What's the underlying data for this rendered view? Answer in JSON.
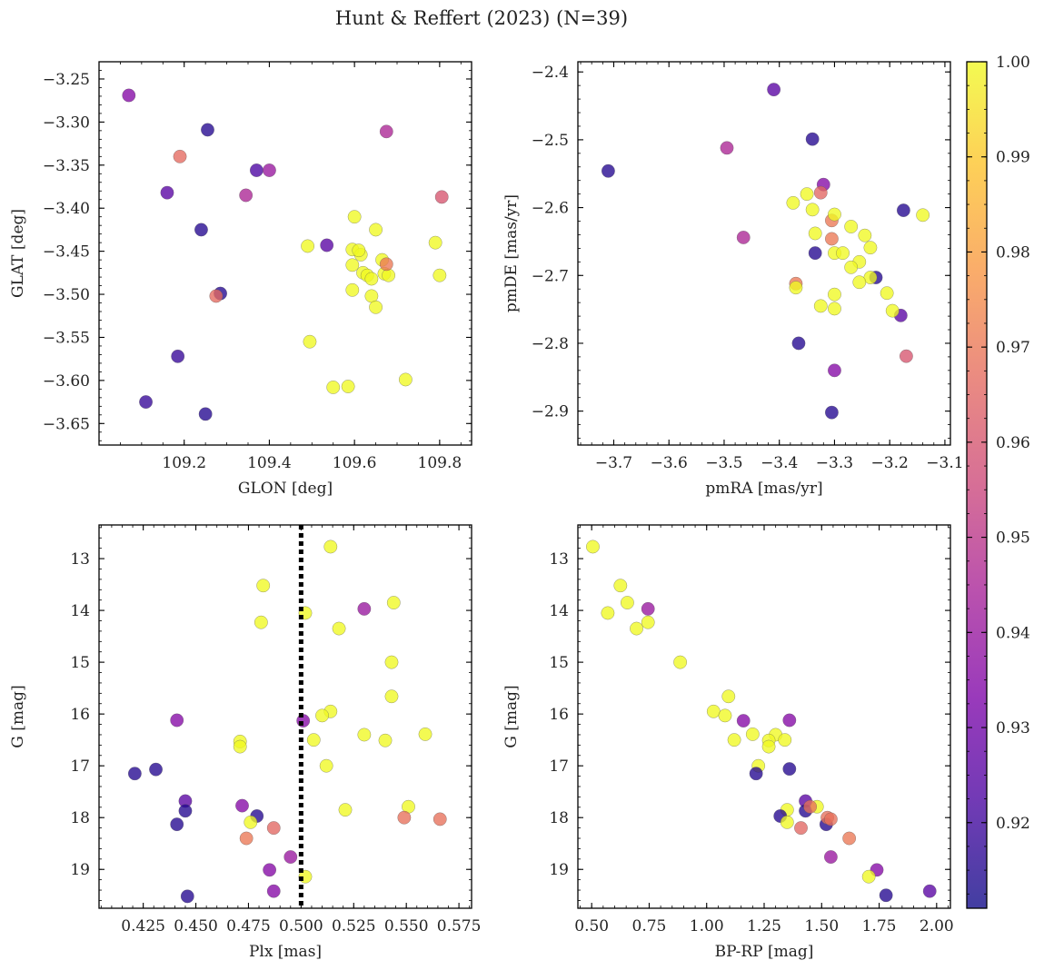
{
  "chart_data": {
    "title": "Hunt & Reffert (2023) (N=39)",
    "colorbar": {
      "range": [
        0.911,
        1.0
      ],
      "ticks": [
        0.92,
        0.93,
        0.94,
        0.95,
        0.96,
        0.97,
        0.98,
        0.99,
        1.0
      ],
      "tick_labels": [
        "0.92",
        "0.93",
        "0.94",
        "0.95",
        "0.96",
        "0.97",
        "0.98",
        "0.99",
        "1.00"
      ],
      "colormap": "plasma"
    },
    "panels": [
      {
        "type": "scatter",
        "xlabel": "GLON [deg]",
        "ylabel": "GLAT [deg]",
        "xlim": [
          109.0,
          109.875
        ],
        "ylim": [
          -3.675,
          -3.23
        ],
        "xticks": [
          109.2,
          109.4,
          109.6,
          109.8
        ],
        "xtick_labels": [
          "109.2",
          "109.4",
          "109.6",
          "109.8"
        ],
        "yticks": [
          -3.65,
          -3.6,
          -3.55,
          -3.5,
          -3.45,
          -3.4,
          -3.35,
          -3.3,
          -3.25
        ],
        "ytick_labels": [
          "−3.65",
          "−3.60",
          "−3.55",
          "−3.50",
          "−3.45",
          "−3.40",
          "−3.35",
          "−3.30",
          "−3.25"
        ],
        "x_minor_step": 0.05,
        "y_minor_step": 0.01,
        "points": [
          [
            109.07,
            -3.269,
            0.935
          ],
          [
            109.255,
            -3.309,
            0.915
          ],
          [
            109.19,
            -3.34,
            0.966
          ],
          [
            109.16,
            -3.382,
            0.925
          ],
          [
            109.37,
            -3.356,
            0.922
          ],
          [
            109.4,
            -3.356,
            0.94
          ],
          [
            109.345,
            -3.385,
            0.945
          ],
          [
            109.24,
            -3.425,
            0.915
          ],
          [
            109.285,
            -3.499,
            0.915
          ],
          [
            109.275,
            -3.502,
            0.966
          ],
          [
            109.185,
            -3.572,
            0.918
          ],
          [
            109.11,
            -3.625,
            0.918
          ],
          [
            109.25,
            -3.639,
            0.915
          ],
          [
            109.535,
            -3.443,
            0.925
          ],
          [
            109.675,
            -3.311,
            0.945
          ],
          [
            109.805,
            -3.387,
            0.96
          ],
          [
            109.49,
            -3.444,
            1.0
          ],
          [
            109.6,
            -3.41,
            1.0
          ],
          [
            109.595,
            -3.448,
            1.0
          ],
          [
            109.615,
            -3.454,
            1.0
          ],
          [
            109.65,
            -3.425,
            1.0
          ],
          [
            109.595,
            -3.466,
            1.0
          ],
          [
            109.62,
            -3.475,
            1.0
          ],
          [
            109.63,
            -3.478,
            1.0
          ],
          [
            109.64,
            -3.482,
            1.0
          ],
          [
            109.665,
            -3.46,
            1.0
          ],
          [
            109.67,
            -3.476,
            1.0
          ],
          [
            109.68,
            -3.478,
            1.0
          ],
          [
            109.675,
            -3.465,
            0.97
          ],
          [
            109.595,
            -3.495,
            1.0
          ],
          [
            109.64,
            -3.502,
            1.0
          ],
          [
            109.65,
            -3.515,
            1.0
          ],
          [
            109.79,
            -3.44,
            1.0
          ],
          [
            109.8,
            -3.478,
            1.0
          ],
          [
            109.495,
            -3.555,
            1.0
          ],
          [
            109.72,
            -3.599,
            1.0
          ],
          [
            109.55,
            -3.608,
            1.0
          ],
          [
            109.585,
            -3.607,
            1.0
          ],
          [
            109.61,
            -3.449,
            1.0
          ]
        ]
      },
      {
        "type": "scatter",
        "xlabel": "pmRA [mas/yr]",
        "ylabel": "pmDE [mas/yr]",
        "xlim": [
          -3.765,
          -3.09
        ],
        "ylim": [
          -2.95,
          -2.385
        ],
        "xticks": [
          -3.7,
          -3.6,
          -3.5,
          -3.4,
          -3.3,
          -3.2,
          -3.1
        ],
        "xtick_labels": [
          "−3.7",
          "−3.6",
          "−3.5",
          "−3.4",
          "−3.3",
          "−3.2",
          "−3.1"
        ],
        "yticks": [
          -2.9,
          -2.8,
          -2.7,
          -2.6,
          -2.5,
          -2.4
        ],
        "ytick_labels": [
          "−2.9",
          "−2.8",
          "−2.7",
          "−2.6",
          "−2.5",
          "−2.4"
        ],
        "x_minor_step": 0.02,
        "y_minor_step": 0.02,
        "points": [
          [
            -3.71,
            -2.546,
            0.915
          ],
          [
            -3.41,
            -2.426,
            0.925
          ],
          [
            -3.495,
            -2.512,
            0.945
          ],
          [
            -3.34,
            -2.499,
            0.915
          ],
          [
            -3.32,
            -2.566,
            0.935
          ],
          [
            -3.465,
            -2.644,
            0.945
          ],
          [
            -3.335,
            -2.667,
            0.915
          ],
          [
            -3.175,
            -2.604,
            0.915
          ],
          [
            -3.225,
            -2.703,
            0.915
          ],
          [
            -3.18,
            -2.759,
            0.925
          ],
          [
            -3.365,
            -2.8,
            0.915
          ],
          [
            -3.17,
            -2.819,
            0.96
          ],
          [
            -3.3,
            -2.84,
            0.935
          ],
          [
            -3.305,
            -2.902,
            0.915
          ],
          [
            -3.325,
            -2.578,
            0.965
          ],
          [
            -3.305,
            -2.619,
            0.97
          ],
          [
            -3.305,
            -2.646,
            0.97
          ],
          [
            -3.37,
            -2.712,
            0.97
          ],
          [
            -3.375,
            -2.593,
            1.0
          ],
          [
            -3.35,
            -2.58,
            1.0
          ],
          [
            -3.34,
            -2.603,
            1.0
          ],
          [
            -3.3,
            -2.61,
            1.0
          ],
          [
            -3.27,
            -2.628,
            1.0
          ],
          [
            -3.335,
            -2.638,
            1.0
          ],
          [
            -3.245,
            -2.641,
            1.0
          ],
          [
            -3.235,
            -2.659,
            1.0
          ],
          [
            -3.3,
            -2.667,
            1.0
          ],
          [
            -3.285,
            -2.667,
            1.0
          ],
          [
            -3.255,
            -2.68,
            1.0
          ],
          [
            -3.27,
            -2.688,
            1.0
          ],
          [
            -3.235,
            -2.703,
            1.0
          ],
          [
            -3.255,
            -2.71,
            1.0
          ],
          [
            -3.37,
            -2.718,
            1.0
          ],
          [
            -3.3,
            -2.728,
            1.0
          ],
          [
            -3.205,
            -2.726,
            1.0
          ],
          [
            -3.325,
            -2.745,
            1.0
          ],
          [
            -3.3,
            -2.749,
            1.0
          ],
          [
            -3.195,
            -2.752,
            1.0
          ],
          [
            -3.14,
            -2.611,
            1.0
          ]
        ]
      },
      {
        "type": "scatter",
        "xlabel": "Plx [mas]",
        "ylabel": "G [mag]",
        "xlim": [
          0.404,
          0.581
        ],
        "ylim": [
          19.75,
          12.35
        ],
        "y_inverted": true,
        "xticks": [
          0.425,
          0.45,
          0.475,
          0.5,
          0.525,
          0.55,
          0.575
        ],
        "xtick_labels": [
          "0.425",
          "0.450",
          "0.475",
          "0.500",
          "0.525",
          "0.550",
          "0.575"
        ],
        "yticks": [
          13,
          14,
          15,
          16,
          17,
          18,
          19
        ],
        "ytick_labels": [
          "13",
          "14",
          "15",
          "16",
          "17",
          "18",
          "19"
        ],
        "x_minor_step": 0.005,
        "y_minor_step": 0.2,
        "vline": {
          "x": 0.5,
          "style": "dotted"
        },
        "points": [
          [
            0.514,
            12.77,
            1.0
          ],
          [
            0.482,
            13.52,
            1.0
          ],
          [
            0.481,
            14.23,
            1.0
          ],
          [
            0.502,
            14.05,
            1.0
          ],
          [
            0.518,
            14.35,
            1.0
          ],
          [
            0.53,
            13.97,
            0.94
          ],
          [
            0.544,
            13.85,
            1.0
          ],
          [
            0.543,
            15.0,
            1.0
          ],
          [
            0.543,
            15.66,
            1.0
          ],
          [
            0.441,
            16.12,
            0.935
          ],
          [
            0.501,
            16.13,
            0.935
          ],
          [
            0.514,
            15.95,
            1.0
          ],
          [
            0.51,
            16.03,
            1.0
          ],
          [
            0.506,
            16.5,
            1.0
          ],
          [
            0.53,
            16.4,
            1.0
          ],
          [
            0.54,
            16.51,
            1.0
          ],
          [
            0.559,
            16.39,
            1.0
          ],
          [
            0.471,
            16.53,
            1.0
          ],
          [
            0.471,
            16.63,
            1.0
          ],
          [
            0.512,
            17.0,
            1.0
          ],
          [
            0.421,
            17.15,
            0.915
          ],
          [
            0.431,
            17.07,
            0.915
          ],
          [
            0.445,
            17.68,
            0.925
          ],
          [
            0.445,
            17.87,
            0.915
          ],
          [
            0.472,
            17.77,
            0.935
          ],
          [
            0.479,
            17.97,
            0.915
          ],
          [
            0.441,
            18.13,
            0.915
          ],
          [
            0.476,
            18.09,
            1.0
          ],
          [
            0.487,
            18.2,
            0.965
          ],
          [
            0.474,
            18.4,
            0.97
          ],
          [
            0.521,
            17.85,
            1.0
          ],
          [
            0.551,
            17.79,
            1.0
          ],
          [
            0.549,
            18.0,
            0.968
          ],
          [
            0.566,
            18.03,
            0.968
          ],
          [
            0.495,
            18.76,
            0.94
          ],
          [
            0.485,
            19.01,
            0.935
          ],
          [
            0.502,
            19.14,
            1.0
          ],
          [
            0.446,
            19.52,
            0.915
          ],
          [
            0.487,
            19.42,
            0.935
          ]
        ]
      },
      {
        "type": "scatter",
        "xlabel": "BP-RP [mag]",
        "ylabel": "G [mag]",
        "xlim": [
          0.44,
          2.06
        ],
        "ylim": [
          19.75,
          12.35
        ],
        "y_inverted": true,
        "xticks": [
          0.5,
          0.75,
          1.0,
          1.25,
          1.5,
          1.75,
          2.0
        ],
        "xtick_labels": [
          "0.50",
          "0.75",
          "1.00",
          "1.25",
          "1.50",
          "1.75",
          "2.00"
        ],
        "yticks": [
          13,
          14,
          15,
          16,
          17,
          18,
          19
        ],
        "ytick_labels": [
          "13",
          "14",
          "15",
          "16",
          "17",
          "18",
          "19"
        ],
        "x_minor_step": 0.05,
        "y_minor_step": 0.2,
        "points": [
          [
            0.505,
            12.77,
            1.0
          ],
          [
            0.625,
            13.52,
            1.0
          ],
          [
            0.655,
            13.85,
            1.0
          ],
          [
            0.57,
            14.05,
            1.0
          ],
          [
            0.695,
            14.35,
            1.0
          ],
          [
            0.745,
            14.23,
            1.0
          ],
          [
            0.745,
            13.97,
            0.94
          ],
          [
            0.885,
            15.0,
            1.0
          ],
          [
            1.095,
            15.66,
            1.0
          ],
          [
            1.03,
            15.95,
            1.0
          ],
          [
            1.08,
            16.03,
            1.0
          ],
          [
            1.16,
            16.13,
            0.935
          ],
          [
            1.2,
            16.39,
            1.0
          ],
          [
            1.3,
            16.4,
            1.0
          ],
          [
            1.27,
            16.51,
            1.0
          ],
          [
            1.34,
            16.5,
            1.0
          ],
          [
            1.12,
            16.5,
            1.0
          ],
          [
            1.27,
            16.63,
            1.0
          ],
          [
            1.36,
            16.12,
            0.935
          ],
          [
            1.225,
            17.0,
            1.0
          ],
          [
            1.215,
            17.15,
            0.915
          ],
          [
            1.36,
            17.06,
            0.915
          ],
          [
            1.43,
            17.68,
            0.925
          ],
          [
            1.43,
            17.87,
            0.915
          ],
          [
            1.35,
            17.85,
            1.0
          ],
          [
            1.32,
            17.97,
            0.915
          ],
          [
            1.35,
            18.09,
            1.0
          ],
          [
            1.48,
            17.79,
            1.0
          ],
          [
            1.52,
            18.13,
            0.915
          ],
          [
            1.525,
            18.0,
            0.968
          ],
          [
            1.54,
            18.03,
            0.968
          ],
          [
            1.41,
            18.2,
            0.965
          ],
          [
            1.62,
            18.4,
            0.97
          ],
          [
            1.45,
            17.79,
            0.968
          ],
          [
            1.54,
            18.76,
            0.94
          ],
          [
            1.74,
            19.01,
            0.935
          ],
          [
            1.705,
            19.14,
            1.0
          ],
          [
            1.78,
            19.5,
            0.915
          ],
          [
            1.97,
            19.42,
            0.925
          ]
        ]
      }
    ]
  }
}
